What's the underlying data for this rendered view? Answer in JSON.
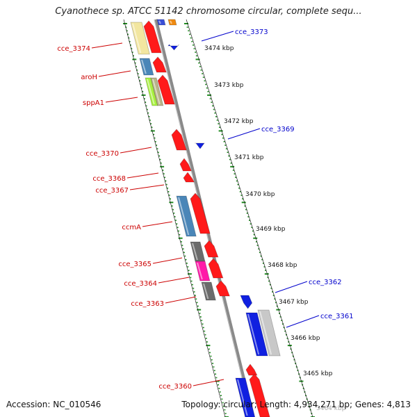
{
  "title": "Cyanothece sp. ATCC 51142 chromosome circular, complete sequ...",
  "footer": {
    "accession": "Accession: NC_010546",
    "topology": "Topology: circular; Length: 4,934,271 bp; Genes: 4,813"
  },
  "colors": {
    "forward_label": "#cc0000",
    "reverse_label": "#0000cc",
    "backbone": "#8a8a8a",
    "tick": "#228b22"
  },
  "kbp_labels": [
    "3474 kbp",
    "3473 kbp",
    "3472 kbp",
    "3471 kbp",
    "3470 kbp",
    "3469 kbp",
    "3468 kbp",
    "3467 kbp",
    "3466 kbp",
    "3465 kbp",
    "3464 kbp"
  ],
  "gene_labels_left": [
    "cce_3374",
    "aroH",
    "sppA1",
    "cce_3370",
    "cce_3368",
    "cce_3367",
    "ccmA",
    "cce_3365",
    "cce_3364",
    "cce_3363",
    "cce_3360"
  ],
  "gene_labels_right": [
    "cce_3373",
    "cce_3369",
    "cce_3362",
    "cce_3361"
  ]
}
